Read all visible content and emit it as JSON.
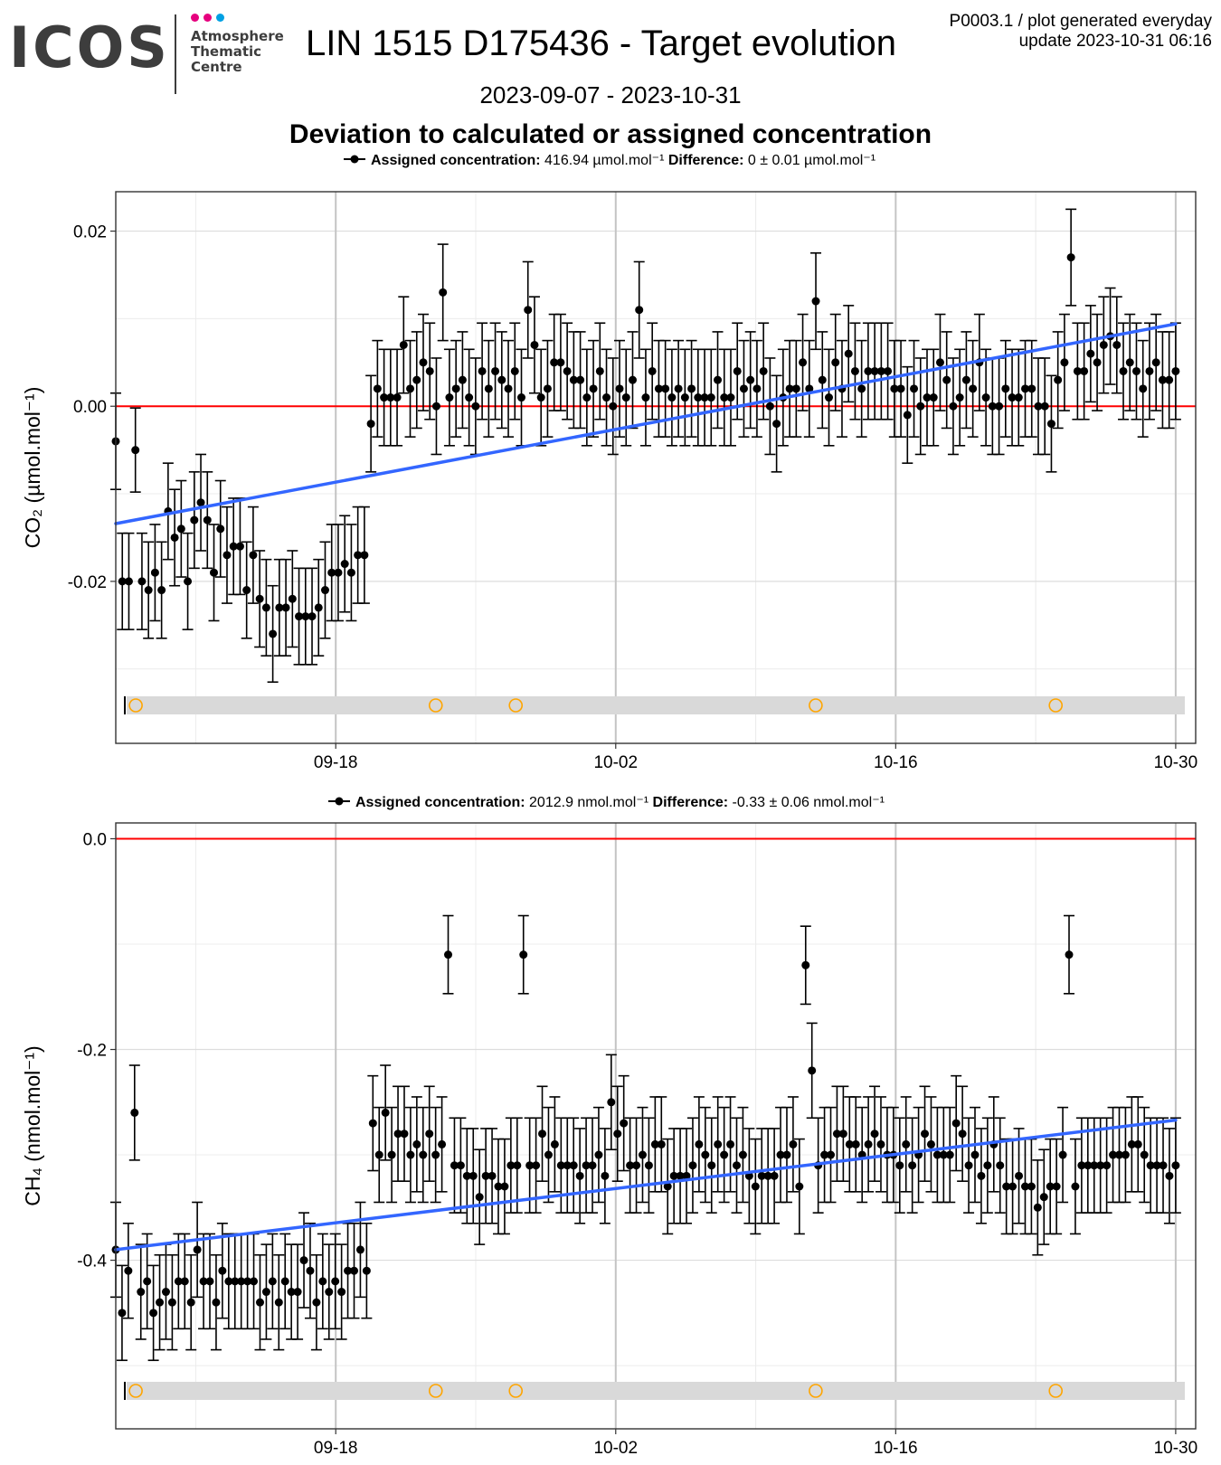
{
  "header": {
    "logo_text": "ICOS",
    "logo_subtitle": [
      "Atmosphere",
      "Thematic",
      "Centre"
    ],
    "logo_dot_colors": [
      "#e6007e",
      "#e6007e",
      "#00a0e3"
    ],
    "title": "LIN 1515 D175436 - Target evolution",
    "plot_id": "P0003.1 / plot generated everyday",
    "update": "update  2023-10-31 06:16",
    "date_range": "2023-09-07 - 2023-10-31",
    "subtitle": "Deviation to calculated or assigned concentration"
  },
  "colors": {
    "points": "#000000",
    "zero_line": "#ff0000",
    "trend": "#3366ff",
    "flag_band": "#d9d9d9",
    "flag_marker": "#ffa500"
  },
  "chart_data": [
    {
      "type": "scatter",
      "species": "CO2",
      "legend": {
        "label": "Assigned concentration:",
        "value": "416.94 µmol.mol⁻¹",
        "diff_label": "Difference:",
        "diff_value": "0 ± 0.01 µmol.mol⁻¹"
      },
      "ylabel": "CO₂ (µmol.mol⁻¹)",
      "ylim": [
        -0.0385,
        0.0245
      ],
      "yticks": [
        -0.02,
        0.0,
        0.02
      ],
      "ytick_labels": [
        "-0.02",
        "0.00",
        "0.02"
      ],
      "xlim": [
        "2023-09-07",
        "2023-10-31"
      ],
      "xticks": [
        "2023-09-18",
        "2023-10-02",
        "2023-10-16",
        "2023-10-30"
      ],
      "xtick_labels": [
        "09-18",
        "10-02",
        "10-16",
        "10-30"
      ],
      "error_half_width": 0.0055,
      "series_y": [
        -0.004,
        -0.02,
        -0.02,
        -0.005,
        -0.02,
        -0.021,
        -0.019,
        -0.021,
        -0.012,
        -0.015,
        -0.014,
        -0.02,
        -0.013,
        -0.011,
        -0.013,
        -0.019,
        -0.014,
        -0.017,
        -0.016,
        -0.016,
        -0.021,
        -0.017,
        -0.022,
        -0.023,
        -0.026,
        -0.023,
        -0.023,
        -0.022,
        -0.024,
        -0.024,
        -0.024,
        -0.023,
        -0.021,
        -0.019,
        -0.019,
        -0.018,
        -0.019,
        -0.017,
        -0.017,
        -0.002,
        0.002,
        0.001,
        0.001,
        0.001,
        0.007,
        0.002,
        0.003,
        0.005,
        0.004,
        0.0,
        0.013,
        0.001,
        0.002,
        0.003,
        0.001,
        0.0,
        0.004,
        0.002,
        0.004,
        0.003,
        0.002,
        0.004,
        0.001,
        0.011,
        0.007,
        0.001,
        0.002,
        0.005,
        0.005,
        0.004,
        0.003,
        0.003,
        0.001,
        0.002,
        0.004,
        0.001,
        0.0,
        0.002,
        0.001,
        0.003,
        0.011,
        0.001,
        0.004,
        0.002,
        0.002,
        0.001,
        0.002,
        0.001,
        0.002,
        0.001,
        0.001,
        0.001,
        0.003,
        0.001,
        0.001,
        0.004,
        0.002,
        0.003,
        0.002,
        0.004,
        0.0,
        -0.002,
        0.001,
        0.002,
        0.002,
        0.005,
        0.002,
        0.012,
        0.003,
        0.001,
        0.005,
        0.002,
        0.006,
        0.004,
        0.002,
        0.004,
        0.004,
        0.004,
        0.004,
        0.002,
        0.002,
        -0.001,
        0.002,
        0.0,
        0.001,
        0.001,
        0.005,
        0.003,
        0.0,
        0.001,
        0.003,
        0.002,
        0.005,
        0.001,
        0.0,
        0.0,
        0.002,
        0.001,
        0.001,
        0.002,
        0.002,
        0.0,
        0.0,
        -0.002,
        0.003,
        0.005,
        0.017,
        0.004,
        0.004,
        0.006,
        0.005,
        0.007,
        0.008,
        0.007,
        0.004,
        0.005,
        0.004,
        0.002,
        0.004,
        0.005,
        0.003,
        0.003,
        0.004
      ],
      "outlier_error_half_width": 0.0048,
      "trend": {
        "x": [
          "2023-09-07",
          "2023-10-30"
        ],
        "y": [
          -0.0134,
          0.0094
        ]
      },
      "flag_dates": [
        "2023-09-08",
        "2023-09-23",
        "2023-09-27",
        "2023-10-12",
        "2023-10-24"
      ]
    },
    {
      "type": "scatter",
      "species": "CH4",
      "legend": {
        "label": "Assigned concentration:",
        "value": "2012.9 nmol.mol⁻¹",
        "diff_label": "Difference:",
        "diff_value": "-0.33 ± 0.06 nmol.mol⁻¹"
      },
      "ylabel": "CH₄ (nmol.mol⁻¹)",
      "ylim": [
        -0.56,
        0.015
      ],
      "yticks": [
        -0.4,
        -0.2,
        0.0
      ],
      "ytick_labels": [
        "-0.4",
        "-0.2",
        "0.0"
      ],
      "xlim": [
        "2023-09-07",
        "2023-10-31"
      ],
      "xticks": [
        "2023-09-18",
        "2023-10-02",
        "2023-10-16",
        "2023-10-30"
      ],
      "xtick_labels": [
        "09-18",
        "10-02",
        "10-16",
        "10-30"
      ],
      "error_half_width": 0.045,
      "series_y": [
        -0.39,
        -0.45,
        -0.41,
        -0.26,
        -0.43,
        -0.42,
        -0.45,
        -0.44,
        -0.43,
        -0.44,
        -0.42,
        -0.42,
        -0.44,
        -0.39,
        -0.42,
        -0.42,
        -0.44,
        -0.41,
        -0.42,
        -0.42,
        -0.42,
        -0.42,
        -0.42,
        -0.44,
        -0.43,
        -0.42,
        -0.44,
        -0.42,
        -0.43,
        -0.43,
        -0.4,
        -0.41,
        -0.44,
        -0.42,
        -0.43,
        -0.42,
        -0.43,
        -0.41,
        -0.41,
        -0.39,
        -0.41,
        -0.27,
        -0.3,
        -0.26,
        -0.3,
        -0.28,
        -0.28,
        -0.3,
        -0.29,
        -0.3,
        -0.28,
        -0.3,
        -0.29,
        -0.11,
        -0.31,
        -0.31,
        -0.32,
        -0.32,
        -0.34,
        -0.32,
        -0.32,
        -0.33,
        -0.33,
        -0.31,
        -0.31,
        -0.11,
        -0.31,
        -0.31,
        -0.28,
        -0.3,
        -0.29,
        -0.31,
        -0.31,
        -0.31,
        -0.32,
        -0.31,
        -0.31,
        -0.3,
        -0.32,
        -0.25,
        -0.28,
        -0.27,
        -0.31,
        -0.31,
        -0.3,
        -0.31,
        -0.29,
        -0.29,
        -0.33,
        -0.32,
        -0.32,
        -0.32,
        -0.31,
        -0.29,
        -0.3,
        -0.31,
        -0.29,
        -0.3,
        -0.29,
        -0.31,
        -0.3,
        -0.32,
        -0.33,
        -0.32,
        -0.32,
        -0.32,
        -0.3,
        -0.3,
        -0.29,
        -0.33,
        -0.12,
        -0.22,
        -0.31,
        -0.3,
        -0.3,
        -0.28,
        -0.28,
        -0.29,
        -0.29,
        -0.3,
        -0.29,
        -0.28,
        -0.29,
        -0.3,
        -0.3,
        -0.31,
        -0.29,
        -0.31,
        -0.3,
        -0.28,
        -0.29,
        -0.3,
        -0.3,
        -0.3,
        -0.27,
        -0.28,
        -0.31,
        -0.3,
        -0.32,
        -0.31,
        -0.29,
        -0.31,
        -0.33,
        -0.33,
        -0.32,
        -0.33,
        -0.33,
        -0.35,
        -0.34,
        -0.33,
        -0.33,
        -0.3,
        -0.11,
        -0.33,
        -0.31,
        -0.31,
        -0.31,
        -0.31,
        -0.31,
        -0.3,
        -0.3,
        -0.3,
        -0.29,
        -0.29,
        -0.3,
        -0.31,
        -0.31,
        -0.31,
        -0.32,
        -0.31
      ],
      "outlier_error_half_width": 0.037,
      "trend": {
        "x": [
          "2023-09-07",
          "2023-10-30"
        ],
        "y": [
          -0.39,
          -0.267
        ]
      },
      "flag_dates": [
        "2023-09-08",
        "2023-09-23",
        "2023-09-27",
        "2023-10-12",
        "2023-10-24"
      ]
    }
  ]
}
